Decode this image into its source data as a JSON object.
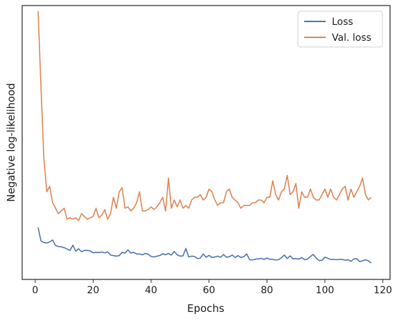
{
  "chart_data": {
    "type": "line",
    "title": "",
    "xlabel": "Epochs",
    "ylabel": "Negative log-likelihood",
    "xlim": [
      -4.5,
      122.5
    ],
    "xticks": [
      0,
      20,
      40,
      60,
      80,
      100,
      120
    ],
    "xtick_labels": [
      "0",
      "20",
      "40",
      "60",
      "80",
      "100",
      "120"
    ],
    "ylim": [
      0,
      1
    ],
    "yticks_visible": false,
    "grid": false,
    "legend_position": "top-right",
    "series": [
      {
        "name": "Loss",
        "color": "#4c72b0",
        "x": [
          1,
          2,
          3,
          4,
          5,
          6,
          7,
          8,
          9,
          10,
          11,
          12,
          13,
          14,
          15,
          16,
          17,
          18,
          19,
          20,
          21,
          22,
          23,
          24,
          25,
          26,
          27,
          28,
          29,
          30,
          31,
          32,
          33,
          34,
          35,
          36,
          37,
          38,
          39,
          40,
          41,
          42,
          43,
          44,
          45,
          46,
          47,
          48,
          49,
          50,
          51,
          52,
          53,
          54,
          55,
          56,
          57,
          58,
          59,
          60,
          61,
          62,
          63,
          64,
          65,
          66,
          67,
          68,
          69,
          70,
          71,
          72,
          73,
          74,
          75,
          76,
          77,
          78,
          79,
          80,
          81,
          82,
          83,
          84,
          85,
          86,
          87,
          88,
          89,
          90,
          91,
          92,
          93,
          94,
          95,
          96,
          97,
          98,
          99,
          100,
          101,
          102,
          103,
          104,
          105,
          106,
          107,
          108,
          109,
          110,
          111,
          112,
          113,
          114,
          115,
          116
        ],
        "y": [
          0.19,
          0.14,
          0.135,
          0.133,
          0.137,
          0.144,
          0.124,
          0.12,
          0.119,
          0.116,
          0.111,
          0.106,
          0.125,
          0.103,
          0.112,
          0.101,
          0.106,
          0.106,
          0.104,
          0.097,
          0.099,
          0.098,
          0.1,
          0.097,
          0.101,
          0.089,
          0.087,
          0.085,
          0.087,
          0.099,
          0.096,
          0.108,
          0.096,
          0.099,
          0.093,
          0.093,
          0.09,
          0.095,
          0.092,
          0.084,
          0.082,
          0.085,
          0.087,
          0.094,
          0.09,
          0.095,
          0.089,
          0.102,
          0.09,
          0.085,
          0.086,
          0.113,
          0.082,
          0.085,
          0.084,
          0.076,
          0.078,
          0.093,
          0.081,
          0.088,
          0.08,
          0.082,
          0.085,
          0.081,
          0.091,
          0.081,
          0.083,
          0.089,
          0.08,
          0.087,
          0.08,
          0.083,
          0.093,
          0.072,
          0.071,
          0.074,
          0.075,
          0.077,
          0.073,
          0.078,
          0.074,
          0.073,
          0.071,
          0.072,
          0.079,
          0.089,
          0.076,
          0.086,
          0.075,
          0.076,
          0.074,
          0.08,
          0.072,
          0.074,
          0.084,
          0.091,
          0.078,
          0.069,
          0.07,
          0.081,
          0.077,
          0.073,
          0.073,
          0.072,
          0.073,
          0.073,
          0.07,
          0.072,
          0.066,
          0.075,
          0.076,
          0.065,
          0.068,
          0.072,
          0.068,
          0.06
        ]
      },
      {
        "name": "Val. loss",
        "color": "#dd8452",
        "x": [
          1,
          2,
          3,
          4,
          5,
          6,
          7,
          8,
          9,
          10,
          11,
          12,
          13,
          14,
          15,
          16,
          17,
          18,
          19,
          20,
          21,
          22,
          23,
          24,
          25,
          26,
          27,
          28,
          29,
          30,
          31,
          32,
          33,
          34,
          35,
          36,
          37,
          38,
          39,
          40,
          41,
          42,
          43,
          44,
          45,
          46,
          47,
          48,
          49,
          50,
          51,
          52,
          53,
          54,
          55,
          56,
          57,
          58,
          59,
          60,
          61,
          62,
          63,
          64,
          65,
          66,
          67,
          68,
          69,
          70,
          71,
          72,
          73,
          74,
          75,
          76,
          77,
          78,
          79,
          80,
          81,
          82,
          83,
          84,
          85,
          86,
          87,
          88,
          89,
          90,
          91,
          92,
          93,
          94,
          95,
          96,
          97,
          98,
          99,
          100,
          101,
          102,
          103,
          104,
          105,
          106,
          107,
          108,
          109,
          110,
          111,
          112,
          113,
          114,
          115,
          116
        ],
        "y": [
          0.98,
          0.7,
          0.44,
          0.32,
          0.34,
          0.28,
          0.26,
          0.24,
          0.25,
          0.26,
          0.22,
          0.225,
          0.22,
          0.225,
          0.215,
          0.24,
          0.23,
          0.22,
          0.225,
          0.23,
          0.26,
          0.225,
          0.235,
          0.255,
          0.22,
          0.24,
          0.3,
          0.26,
          0.32,
          0.335,
          0.26,
          0.265,
          0.25,
          0.26,
          0.28,
          0.32,
          0.25,
          0.25,
          0.255,
          0.265,
          0.255,
          0.265,
          0.28,
          0.3,
          0.25,
          0.37,
          0.26,
          0.29,
          0.265,
          0.29,
          0.26,
          0.27,
          0.26,
          0.29,
          0.3,
          0.3,
          0.31,
          0.29,
          0.3,
          0.33,
          0.32,
          0.29,
          0.27,
          0.28,
          0.28,
          0.32,
          0.33,
          0.3,
          0.29,
          0.28,
          0.26,
          0.27,
          0.27,
          0.27,
          0.28,
          0.28,
          0.29,
          0.29,
          0.28,
          0.3,
          0.3,
          0.36,
          0.31,
          0.29,
          0.32,
          0.33,
          0.38,
          0.31,
          0.32,
          0.35,
          0.26,
          0.32,
          0.3,
          0.3,
          0.33,
          0.3,
          0.29,
          0.29,
          0.31,
          0.33,
          0.3,
          0.33,
          0.3,
          0.29,
          0.31,
          0.33,
          0.34,
          0.29,
          0.33,
          0.3,
          0.32,
          0.34,
          0.37,
          0.31,
          0.29,
          0.3
        ]
      }
    ]
  }
}
